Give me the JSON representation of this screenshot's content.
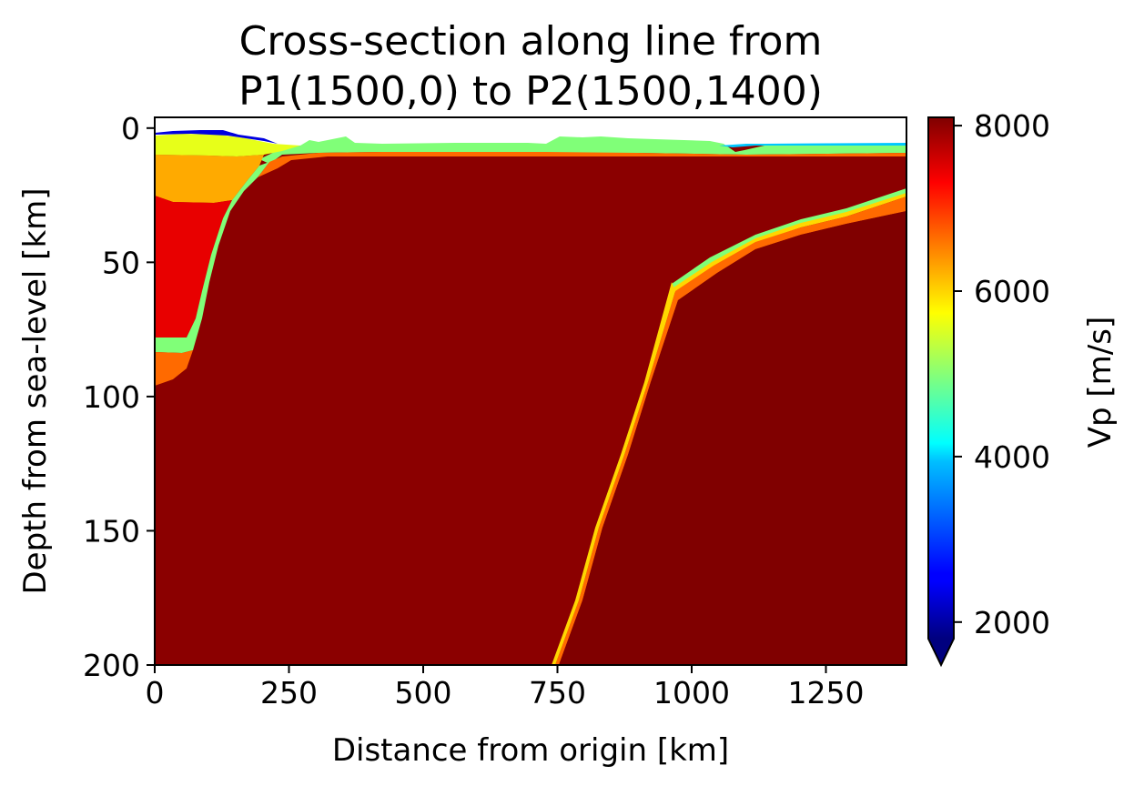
{
  "chart_data": {
    "type": "heatmap",
    "title_line1": "Cross-section along line from",
    "title_line2": "P1(1500,0) to P2(1500,1400)",
    "xlabel": "Distance from origin [km]",
    "ylabel": "Depth from sea-level [km]",
    "xlim": [
      0,
      1400
    ],
    "ylim": [
      200,
      -4
    ],
    "xticks": [
      0,
      250,
      500,
      750,
      1000,
      1250
    ],
    "yticks": [
      0,
      50,
      100,
      150,
      200
    ],
    "colorbar": {
      "label": "Vp [m/s]",
      "colormap": "jet",
      "range": [
        1800,
        8100
      ],
      "ticks": [
        2000,
        4000,
        6000,
        8000
      ],
      "extend": "min"
    },
    "layers": [
      {
        "vp": 7700,
        "color": "#8b0000",
        "boundary": [
          [
            0,
            4
          ],
          [
            1400,
            4
          ]
        ]
      },
      {
        "vp": 5400,
        "color": "#80ff78",
        "boundary": [
          [
            200,
            20
          ],
          [
            250,
            9
          ],
          [
            300,
            7.5
          ],
          [
            345,
            7
          ],
          [
            420,
            7
          ],
          [
            600,
            7
          ],
          [
            800,
            7.5
          ],
          [
            1000,
            7.5
          ],
          [
            1400,
            7.5
          ]
        ]
      },
      {
        "vp": 6700,
        "color": "#ff6a00",
        "boundary": [
          [
            200,
            28
          ],
          [
            250,
            12
          ],
          [
            300,
            10
          ],
          [
            345,
            9.5
          ],
          [
            400,
            8.5
          ],
          [
            600,
            8.5
          ],
          [
            1000,
            8.5
          ],
          [
            1400,
            8.5
          ]
        ]
      },
      {
        "vp": 7700,
        "color": "#8b0000",
        "boundary": [
          [
            200,
            28
          ],
          [
            250,
            15
          ],
          [
            300,
            12
          ],
          [
            345,
            11
          ],
          [
            600,
            11
          ],
          [
            1000,
            11
          ],
          [
            1400,
            11
          ]
        ]
      },
      {
        "vp": 5400,
        "color": "#80ff78",
        "boundary": [
          [
            1400,
            22
          ]
        ]
      },
      {
        "vp": 5900,
        "color": "#ffd700",
        "boundary": [
          [
            1400,
            24
          ]
        ]
      },
      {
        "vp": 6700,
        "color": "#ff6a00",
        "boundary": [
          [
            1400,
            25
          ]
        ]
      },
      {
        "vp": 8000,
        "color": "#800000",
        "boundary": [
          [
            755,
            200
          ],
          [
            780,
            182
          ],
          [
            820,
            152
          ],
          [
            860,
            118
          ],
          [
            900,
            90
          ],
          [
            940,
            70
          ],
          [
            970,
            65
          ],
          [
            1000,
            62
          ],
          [
            1100,
            50
          ],
          [
            1200,
            42
          ],
          [
            1300,
            35
          ],
          [
            1400,
            30
          ]
        ]
      },
      {
        "vp": 6300,
        "color": "#ffaa00",
        "boundary": [
          [
            0,
            9
          ],
          [
            100,
            9.5
          ],
          [
            160,
            9
          ],
          [
            200,
            8.5
          ],
          [
            260,
            7
          ]
        ]
      },
      {
        "vp": 5700,
        "color": "#e7ff19",
        "boundary": [
          [
            0,
            3
          ],
          [
            100,
            2.5
          ],
          [
            200,
            5
          ],
          [
            260,
            6
          ]
        ]
      },
      {
        "vp": 7300,
        "color": "#e80000",
        "boundary": [
          [
            0,
            28
          ],
          [
            60,
            25
          ],
          [
            100,
            26
          ],
          [
            140,
            28
          ]
        ]
      },
      {
        "vp": 6700,
        "color": "#ff6a00",
        "boundary": [
          [
            0,
            95
          ],
          [
            40,
            89
          ],
          [
            70,
            82
          ],
          [
            90,
            75
          ]
        ]
      },
      {
        "vp": 5400,
        "color": "#80ff78",
        "boundary": [
          [
            0,
            83
          ],
          [
            40,
            82
          ],
          [
            70,
            79
          ],
          [
            90,
            70
          ]
        ]
      },
      {
        "vp": 2200,
        "color": "#0000e0",
        "boundary": [
          [
            0,
            1
          ],
          [
            60,
            0
          ],
          [
            200,
            3
          ],
          [
            260,
            4.5
          ]
        ]
      }
    ]
  }
}
